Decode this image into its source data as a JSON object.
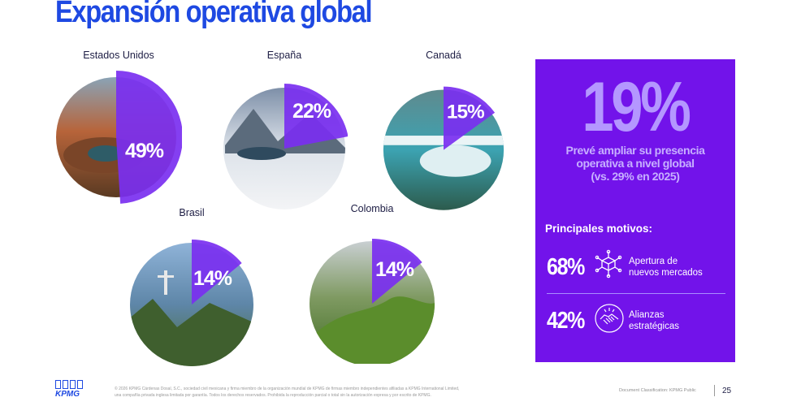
{
  "page": {
    "title": "Expansión operativa global"
  },
  "countries": [
    {
      "name": "Estados Unidos",
      "pct_label": "49%",
      "share": 0.49
    },
    {
      "name": "España",
      "pct_label": "22%",
      "share": 0.22
    },
    {
      "name": "Canadá",
      "pct_label": "15%",
      "share": 0.15
    },
    {
      "name": "Brasil",
      "pct_label": "14%",
      "share": 0.14
    },
    {
      "name": "Colombia",
      "pct_label": "14%",
      "share": 0.14
    }
  ],
  "panel": {
    "big_value": "19%",
    "big_desc_lines": [
      "Prevé ampliar su presencia",
      "operativa a nivel global",
      "(vs. 29% en 2025)"
    ],
    "motives_title": "Principales motivos:",
    "motives": [
      {
        "pct": "68%",
        "icon": "network-cube-icon",
        "lines": [
          "Apertura de",
          "nuevos mercados"
        ]
      },
      {
        "pct": "42%",
        "icon": "handshake-icon",
        "lines": [
          "Alianzas",
          "estratégicas"
        ]
      }
    ]
  },
  "footer": {
    "logo_text": "KPMG",
    "legal_lines": [
      "© 2026 KPMG Cárdenas Dosal, S.C., sociedad civil mexicana y firma miembro de la organización mundial de KPMG de firmas miembro independientes afiliadas a KPMG International Limited,",
      "una compañía privada inglesa limitada por garantía. Todos los derechos reservados. Prohibida la reproducción parcial o total sin la autorización expresa y por escrito de KPMG."
    ],
    "doc_class": "Document Classification: KPMG Public",
    "page_number": "25"
  },
  "colors": {
    "title_blue": "#1e49e2",
    "purple": "#7213ea",
    "purple_light": "#b497ff"
  }
}
